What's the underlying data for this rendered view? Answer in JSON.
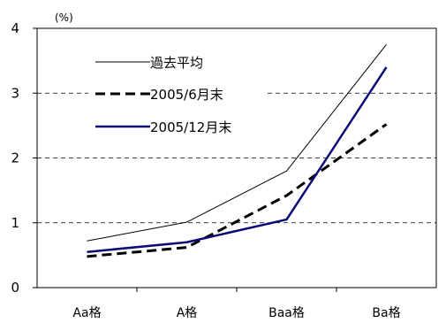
{
  "chart_data": {
    "type": "line",
    "unit_label": "(%)",
    "categories": [
      "Aa格",
      "A格",
      "Baa格",
      "Ba格"
    ],
    "ylim": [
      0,
      4
    ],
    "yticks": [
      0,
      1,
      2,
      3,
      4
    ],
    "grid": "horizontal-dashed",
    "legend_placement": "top-left",
    "series": [
      {
        "name": "過去平均",
        "values": [
          0.72,
          1.01,
          1.8,
          3.75
        ],
        "color": "#000000",
        "style": "solid-thin"
      },
      {
        "name": "2005/6月末",
        "values": [
          0.48,
          0.62,
          1.42,
          2.52
        ],
        "color": "#000000",
        "style": "dashed-thick"
      },
      {
        "name": "2005/12月末",
        "values": [
          0.55,
          0.7,
          1.05,
          3.4
        ],
        "color": "#0a0a78",
        "style": "solid-thick"
      }
    ]
  }
}
